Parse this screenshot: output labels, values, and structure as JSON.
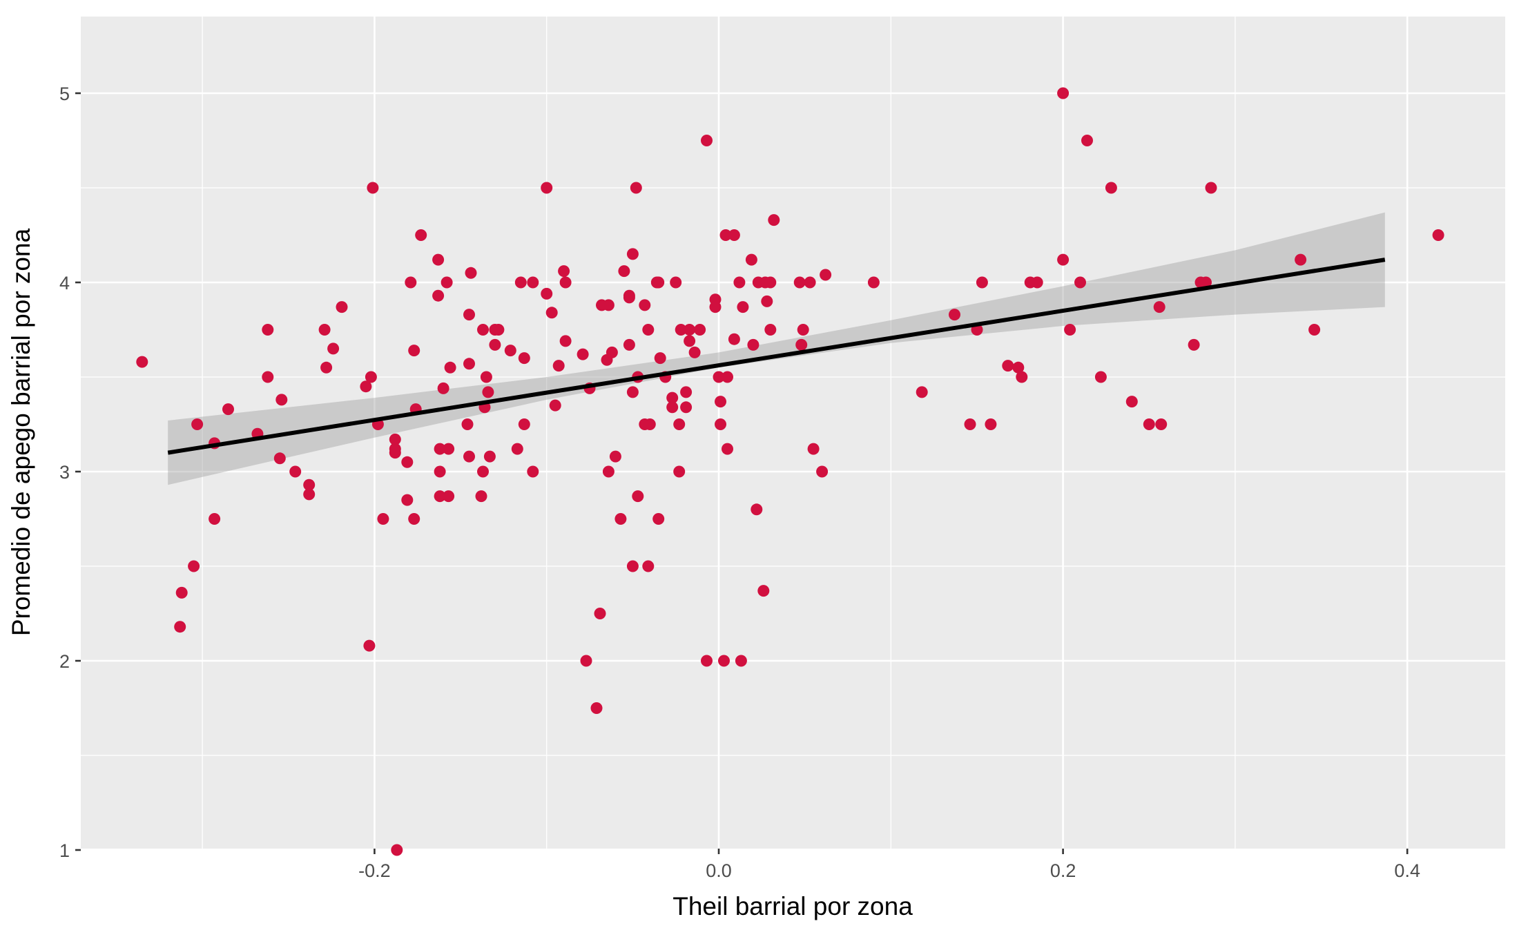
{
  "chart_data": {
    "type": "scatter",
    "title": "",
    "xlabel": "Theil barrial por zona",
    "ylabel": "Promedio de apego barrial por zona",
    "xlim": [
      -0.37,
      0.46
    ],
    "ylim": [
      0.82,
      5.2
    ],
    "x_ticks": [
      -0.2,
      0.0,
      0.2,
      0.4
    ],
    "x_tick_labels": [
      "-0.2",
      "0.0",
      "0.2",
      "0.4"
    ],
    "y_ticks": [
      1,
      2,
      3,
      4,
      5
    ],
    "y_tick_labels": [
      "1",
      "2",
      "3",
      "4",
      "5"
    ],
    "grid": true,
    "legend": "none",
    "colors": {
      "panel_background": "#ebebeb",
      "grid_major": "#ffffff",
      "point": "#d1103f",
      "fit_line": "#000000",
      "confidence_band": "#999999"
    },
    "points": [
      [
        -0.335,
        3.58
      ],
      [
        -0.313,
        2.18
      ],
      [
        -0.312,
        2.36
      ],
      [
        -0.305,
        2.5
      ],
      [
        -0.303,
        3.25
      ],
      [
        -0.293,
        2.75
      ],
      [
        -0.293,
        3.15
      ],
      [
        -0.285,
        3.33
      ],
      [
        -0.268,
        3.2
      ],
      [
        -0.262,
        3.75
      ],
      [
        -0.262,
        3.5
      ],
      [
        -0.255,
        3.07
      ],
      [
        -0.254,
        3.38
      ],
      [
        -0.246,
        3.0
      ],
      [
        -0.238,
        2.93
      ],
      [
        -0.238,
        2.88
      ],
      [
        -0.229,
        3.75
      ],
      [
        -0.228,
        3.55
      ],
      [
        -0.224,
        3.65
      ],
      [
        -0.219,
        3.87
      ],
      [
        -0.205,
        3.45
      ],
      [
        -0.203,
        2.08
      ],
      [
        -0.202,
        3.5
      ],
      [
        -0.201,
        4.5
      ],
      [
        -0.198,
        3.25
      ],
      [
        -0.195,
        2.75
      ],
      [
        -0.188,
        3.1
      ],
      [
        -0.188,
        3.12
      ],
      [
        -0.188,
        3.17
      ],
      [
        -0.187,
        1.0
      ],
      [
        -0.181,
        2.85
      ],
      [
        -0.181,
        3.05
      ],
      [
        -0.179,
        4.0
      ],
      [
        -0.177,
        3.64
      ],
      [
        -0.177,
        2.75
      ],
      [
        -0.176,
        3.33
      ],
      [
        -0.173,
        4.25
      ],
      [
        -0.163,
        3.93
      ],
      [
        -0.163,
        4.12
      ],
      [
        -0.162,
        3.12
      ],
      [
        -0.162,
        3.0
      ],
      [
        -0.162,
        2.87
      ],
      [
        -0.16,
        3.44
      ],
      [
        -0.158,
        4.0
      ],
      [
        -0.157,
        3.12
      ],
      [
        -0.157,
        2.87
      ],
      [
        -0.156,
        3.55
      ],
      [
        -0.146,
        3.25
      ],
      [
        -0.145,
        3.57
      ],
      [
        -0.145,
        3.08
      ],
      [
        -0.145,
        3.83
      ],
      [
        -0.144,
        4.05
      ],
      [
        -0.138,
        2.87
      ],
      [
        -0.137,
        3.0
      ],
      [
        -0.137,
        3.75
      ],
      [
        -0.136,
        3.34
      ],
      [
        -0.135,
        3.5
      ],
      [
        -0.134,
        3.42
      ],
      [
        -0.133,
        3.08
      ],
      [
        -0.13,
        3.67
      ],
      [
        -0.13,
        3.75
      ],
      [
        -0.128,
        3.75
      ],
      [
        -0.121,
        3.64
      ],
      [
        -0.117,
        3.12
      ],
      [
        -0.115,
        4.0
      ],
      [
        -0.113,
        3.6
      ],
      [
        -0.113,
        3.25
      ],
      [
        -0.108,
        4.0
      ],
      [
        -0.108,
        3.0
      ],
      [
        -0.1,
        4.5
      ],
      [
        -0.1,
        3.94
      ],
      [
        -0.097,
        3.84
      ],
      [
        -0.095,
        3.35
      ],
      [
        -0.093,
        3.56
      ],
      [
        -0.09,
        4.06
      ],
      [
        -0.089,
        4.0
      ],
      [
        -0.089,
        3.69
      ],
      [
        -0.079,
        3.62
      ],
      [
        -0.077,
        2.0
      ],
      [
        -0.075,
        3.44
      ],
      [
        -0.071,
        1.75
      ],
      [
        -0.069,
        2.25
      ],
      [
        -0.068,
        3.88
      ],
      [
        -0.065,
        3.59
      ],
      [
        -0.064,
        3.88
      ],
      [
        -0.064,
        3.0
      ],
      [
        -0.062,
        3.63
      ],
      [
        -0.06,
        3.08
      ],
      [
        -0.057,
        2.75
      ],
      [
        -0.055,
        4.06
      ],
      [
        -0.052,
        3.67
      ],
      [
        -0.052,
        3.92
      ],
      [
        -0.052,
        3.93
      ],
      [
        -0.05,
        2.5
      ],
      [
        -0.05,
        3.42
      ],
      [
        -0.05,
        4.15
      ],
      [
        -0.048,
        4.5
      ],
      [
        -0.047,
        3.5
      ],
      [
        -0.047,
        2.87
      ],
      [
        -0.043,
        3.88
      ],
      [
        -0.043,
        3.25
      ],
      [
        -0.041,
        2.5
      ],
      [
        -0.041,
        3.75
      ],
      [
        -0.04,
        3.25
      ],
      [
        -0.036,
        4.0
      ],
      [
        -0.035,
        4.0
      ],
      [
        -0.035,
        2.75
      ],
      [
        -0.034,
        3.6
      ],
      [
        -0.031,
        3.5
      ],
      [
        -0.027,
        3.39
      ],
      [
        -0.027,
        3.34
      ],
      [
        -0.025,
        4.0
      ],
      [
        -0.023,
        3.0
      ],
      [
        -0.023,
        3.25
      ],
      [
        -0.022,
        3.75
      ],
      [
        -0.019,
        3.42
      ],
      [
        -0.019,
        3.34
      ],
      [
        -0.017,
        3.75
      ],
      [
        -0.017,
        3.69
      ],
      [
        -0.014,
        3.63
      ],
      [
        -0.011,
        3.75
      ],
      [
        -0.007,
        2.0
      ],
      [
        -0.007,
        4.75
      ],
      [
        -0.002,
        3.91
      ],
      [
        -0.002,
        3.87
      ],
      [
        0.0,
        3.5
      ],
      [
        0.001,
        3.37
      ],
      [
        0.001,
        3.25
      ],
      [
        0.003,
        2.0
      ],
      [
        0.004,
        4.25
      ],
      [
        0.005,
        3.12
      ],
      [
        0.005,
        3.5
      ],
      [
        0.009,
        4.25
      ],
      [
        0.009,
        3.7
      ],
      [
        0.012,
        4.0
      ],
      [
        0.013,
        2.0
      ],
      [
        0.014,
        3.87
      ],
      [
        0.019,
        4.12
      ],
      [
        0.02,
        3.67
      ],
      [
        0.022,
        2.8
      ],
      [
        0.023,
        4.0
      ],
      [
        0.026,
        2.37
      ],
      [
        0.027,
        4.0
      ],
      [
        0.028,
        3.9
      ],
      [
        0.03,
        3.75
      ],
      [
        0.03,
        4.0
      ],
      [
        0.032,
        4.33
      ],
      [
        0.047,
        4.0
      ],
      [
        0.048,
        3.67
      ],
      [
        0.049,
        3.75
      ],
      [
        0.053,
        4.0
      ],
      [
        0.055,
        3.12
      ],
      [
        0.06,
        3.0
      ],
      [
        0.062,
        4.04
      ],
      [
        0.09,
        4.0
      ],
      [
        0.118,
        3.42
      ],
      [
        0.137,
        3.83
      ],
      [
        0.146,
        3.25
      ],
      [
        0.15,
        3.75
      ],
      [
        0.153,
        4.0
      ],
      [
        0.158,
        3.25
      ],
      [
        0.168,
        3.56
      ],
      [
        0.174,
        3.55
      ],
      [
        0.176,
        3.5
      ],
      [
        0.181,
        4.0
      ],
      [
        0.185,
        4.0
      ],
      [
        0.2,
        4.12
      ],
      [
        0.2,
        5.0
      ],
      [
        0.204,
        3.75
      ],
      [
        0.21,
        4.0
      ],
      [
        0.214,
        4.75
      ],
      [
        0.222,
        3.5
      ],
      [
        0.228,
        4.5
      ],
      [
        0.24,
        3.37
      ],
      [
        0.25,
        3.25
      ],
      [
        0.256,
        3.87
      ],
      [
        0.257,
        3.25
      ],
      [
        0.276,
        3.67
      ],
      [
        0.28,
        4.0
      ],
      [
        0.283,
        4.0
      ],
      [
        0.286,
        4.5
      ],
      [
        0.338,
        4.12
      ],
      [
        0.346,
        3.75
      ],
      [
        0.418,
        4.25
      ]
    ],
    "fit_line": {
      "x": [
        -0.32,
        0.387
      ],
      "y": [
        3.1,
        4.12
      ]
    },
    "confidence_band": {
      "x": [
        -0.32,
        -0.2,
        -0.1,
        0.0,
        0.1,
        0.2,
        0.3,
        0.387
      ],
      "lower": [
        2.93,
        3.18,
        3.38,
        3.55,
        3.68,
        3.77,
        3.83,
        3.87
      ],
      "upper": [
        3.27,
        3.39,
        3.5,
        3.63,
        3.8,
        3.98,
        4.17,
        4.37
      ]
    }
  }
}
